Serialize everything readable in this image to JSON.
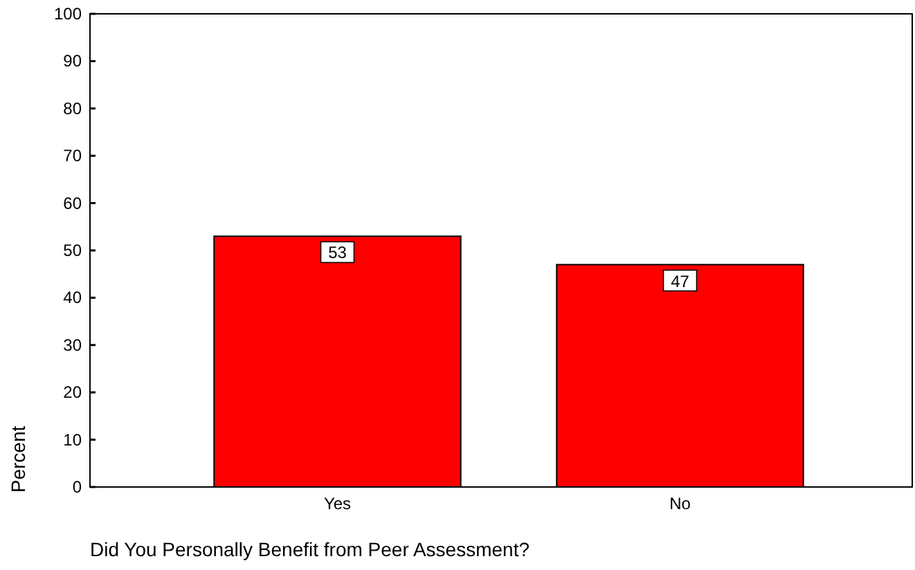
{
  "chart_data": {
    "type": "bar",
    "xlabel": "Did You Personally Benefit from Peer Assessment?",
    "ylabel": "Percent",
    "categories": [
      "Yes",
      "No"
    ],
    "values": [
      53,
      47
    ],
    "color": "#ff0000",
    "ylim": [
      0,
      100
    ],
    "yticks": [
      0,
      10,
      20,
      30,
      40,
      50,
      60,
      70,
      80,
      90,
      100
    ],
    "data_labels": true,
    "grid": false
  }
}
